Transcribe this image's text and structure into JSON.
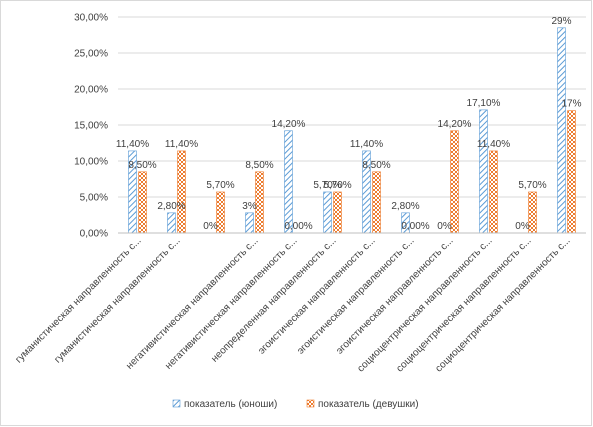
{
  "chart_data": {
    "type": "bar",
    "categories": [
      "гуманистическая направленность с...",
      "гуманистическая направленность с...",
      "",
      "негативистическая направленность с...",
      "негативистическая направленность с...",
      "неопределенная направленность с...",
      "эгоистическая направленность с...",
      "эгоистическая направленность с...",
      "эгоистическая направленность с...",
      "социоцентрическая направленность с...",
      "социоцентрическая направленность с...",
      "социоцентрическая направленность с..."
    ],
    "series": [
      {
        "name": "показатель (юноши)",
        "color": "#5b9bd5",
        "values": [
          11.4,
          2.8,
          0,
          2.8,
          14.2,
          5.7,
          11.4,
          2.8,
          0,
          17.1,
          0,
          28.5
        ],
        "labels": [
          "11,40%",
          "2,80%",
          "0%",
          "3%",
          "14,20%",
          "5,70%",
          "11,40%",
          "2,80%",
          "0%",
          "17,10%",
          "0%",
          "29%"
        ]
      },
      {
        "name": "показатель (девушки)",
        "color": "#ed7d31",
        "values": [
          8.5,
          11.4,
          5.7,
          8.5,
          0,
          5.7,
          8.5,
          0,
          14.2,
          11.4,
          5.7,
          17.0
        ],
        "labels": [
          "8,50%",
          "11,40%",
          "5,70%",
          "8,50%",
          "0,00%",
          "5,70%",
          "8,50%",
          "0,00%",
          "14,20%",
          "11,40%",
          "5,70%",
          "17%"
        ]
      }
    ],
    "yticks": [
      "0,00%",
      "5,00%",
      "10,00%",
      "15,00%",
      "20,00%",
      "25,00%",
      "30,00%"
    ],
    "ylim": [
      0,
      30
    ],
    "grid": true,
    "legend": "bottom"
  }
}
